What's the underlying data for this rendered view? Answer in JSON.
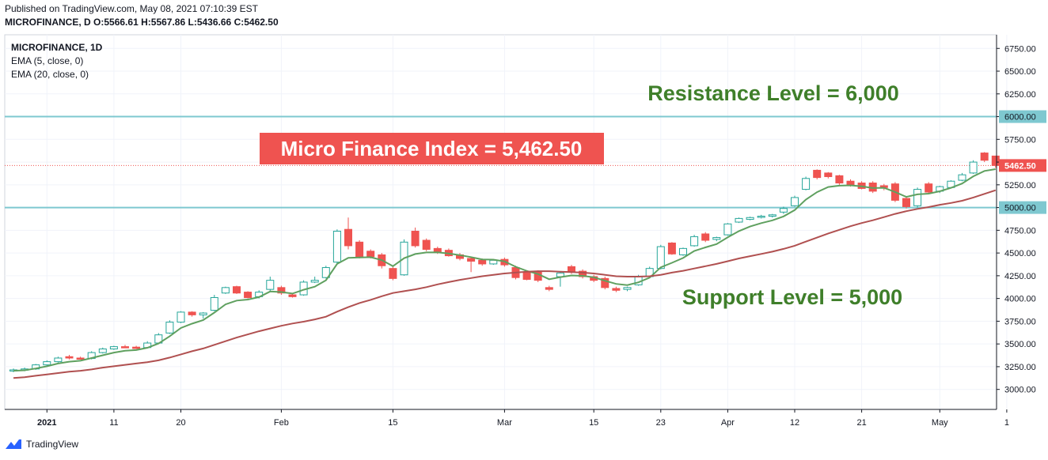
{
  "header": {
    "published": "Published on TradingView.com, May 08, 2021 07:10:39 EST",
    "symbol_line": "MICROFINANCE, D",
    "o_label": "O:",
    "o": "5566.61",
    "h_label": "H:",
    "h": "5567.86",
    "l_label": "L:",
    "l": "5436.66",
    "c_label": "C:",
    "c": "5462.50"
  },
  "legend": {
    "symbol": "MICROFINANCE, 1D",
    "ema5": "EMA (5, close, 0)",
    "ema20": "EMA (20, close, 0)"
  },
  "footer": {
    "brand": "TradingView"
  },
  "colors": {
    "up_border": "#26a69a",
    "down": "#ef5350",
    "ema5": "#5fa05f",
    "ema20": "#b05050",
    "level_line": "#7ec8d0",
    "resistance_text": "#3f7f2a",
    "callout_bg": "#ef5350"
  },
  "chart_data": {
    "type": "candlestick",
    "title": "",
    "ylim": [
      2780,
      6900
    ],
    "y_ticks": [
      "3000.00",
      "3250.00",
      "3500.00",
      "3750.00",
      "4000.00",
      "4250.00",
      "4500.00",
      "4750.00",
      "5000.00",
      "5250.00",
      "5500.00",
      "5750.00",
      "6000.00",
      "6250.00",
      "6500.00",
      "6750.00"
    ],
    "x_ticks": [
      {
        "index": 3,
        "label": "2021"
      },
      {
        "index": 9,
        "label": "11"
      },
      {
        "index": 15,
        "label": "20"
      },
      {
        "index": 24,
        "label": "Feb"
      },
      {
        "index": 34,
        "label": "15"
      },
      {
        "index": 44,
        "label": "Mar"
      },
      {
        "index": 52,
        "label": "15"
      },
      {
        "index": 58,
        "label": "23"
      },
      {
        "index": 64,
        "label": "Apr"
      },
      {
        "index": 70,
        "label": "12"
      },
      {
        "index": 76,
        "label": "21"
      },
      {
        "index": 83,
        "label": "May"
      },
      {
        "index": 89,
        "label": "1"
      }
    ],
    "candles": [
      {
        "o": 3210,
        "h": 3230,
        "l": 3190,
        "c": 3215
      },
      {
        "o": 3215,
        "h": 3240,
        "l": 3200,
        "c": 3225
      },
      {
        "o": 3225,
        "h": 3280,
        "l": 3215,
        "c": 3270
      },
      {
        "o": 3270,
        "h": 3320,
        "l": 3260,
        "c": 3305
      },
      {
        "o": 3305,
        "h": 3360,
        "l": 3295,
        "c": 3345
      },
      {
        "o": 3360,
        "h": 3380,
        "l": 3330,
        "c": 3345
      },
      {
        "o": 3345,
        "h": 3360,
        "l": 3330,
        "c": 3340
      },
      {
        "o": 3340,
        "h": 3420,
        "l": 3330,
        "c": 3405
      },
      {
        "o": 3405,
        "h": 3460,
        "l": 3395,
        "c": 3445
      },
      {
        "o": 3445,
        "h": 3480,
        "l": 3435,
        "c": 3470
      },
      {
        "o": 3470,
        "h": 3490,
        "l": 3455,
        "c": 3465
      },
      {
        "o": 3465,
        "h": 3480,
        "l": 3445,
        "c": 3450
      },
      {
        "o": 3460,
        "h": 3530,
        "l": 3455,
        "c": 3510
      },
      {
        "o": 3510,
        "h": 3620,
        "l": 3500,
        "c": 3600
      },
      {
        "o": 3620,
        "h": 3760,
        "l": 3610,
        "c": 3740
      },
      {
        "o": 3740,
        "h": 3860,
        "l": 3730,
        "c": 3850
      },
      {
        "o": 3850,
        "h": 3860,
        "l": 3800,
        "c": 3820
      },
      {
        "o": 3820,
        "h": 3850,
        "l": 3780,
        "c": 3840
      },
      {
        "o": 3870,
        "h": 4040,
        "l": 3860,
        "c": 4010
      },
      {
        "o": 4060,
        "h": 4130,
        "l": 4050,
        "c": 4120
      },
      {
        "o": 4130,
        "h": 4140,
        "l": 4050,
        "c": 4060
      },
      {
        "o": 4070,
        "h": 4080,
        "l": 4000,
        "c": 4010
      },
      {
        "o": 4020,
        "h": 4090,
        "l": 4000,
        "c": 4070
      },
      {
        "o": 4100,
        "h": 4240,
        "l": 4080,
        "c": 4200
      },
      {
        "o": 4120,
        "h": 4140,
        "l": 4040,
        "c": 4060
      },
      {
        "o": 4040,
        "h": 4060,
        "l": 4010,
        "c": 4020
      },
      {
        "o": 4040,
        "h": 4200,
        "l": 4030,
        "c": 4180
      },
      {
        "o": 4180,
        "h": 4240,
        "l": 4170,
        "c": 4200
      },
      {
        "o": 4230,
        "h": 4360,
        "l": 4220,
        "c": 4340
      },
      {
        "o": 4400,
        "h": 4760,
        "l": 4380,
        "c": 4740
      },
      {
        "o": 4760,
        "h": 4890,
        "l": 4540,
        "c": 4580
      },
      {
        "o": 4620,
        "h": 4640,
        "l": 4440,
        "c": 4460
      },
      {
        "o": 4520,
        "h": 4540,
        "l": 4440,
        "c": 4460
      },
      {
        "o": 4480,
        "h": 4500,
        "l": 4330,
        "c": 4360
      },
      {
        "o": 4330,
        "h": 4350,
        "l": 4200,
        "c": 4220
      },
      {
        "o": 4260,
        "h": 4650,
        "l": 4250,
        "c": 4620
      },
      {
        "o": 4740,
        "h": 4780,
        "l": 4560,
        "c": 4580
      },
      {
        "o": 4640,
        "h": 4660,
        "l": 4520,
        "c": 4540
      },
      {
        "o": 4550,
        "h": 4570,
        "l": 4490,
        "c": 4510
      },
      {
        "o": 4530,
        "h": 4550,
        "l": 4460,
        "c": 4470
      },
      {
        "o": 4480,
        "h": 4500,
        "l": 4420,
        "c": 4440
      },
      {
        "o": 4440,
        "h": 4460,
        "l": 4290,
        "c": 4410
      },
      {
        "o": 4420,
        "h": 4440,
        "l": 4360,
        "c": 4380
      },
      {
        "o": 4380,
        "h": 4430,
        "l": 4370,
        "c": 4420
      },
      {
        "o": 4430,
        "h": 4450,
        "l": 4350,
        "c": 4370
      },
      {
        "o": 4340,
        "h": 4360,
        "l": 4210,
        "c": 4230
      },
      {
        "o": 4290,
        "h": 4310,
        "l": 4200,
        "c": 4210
      },
      {
        "o": 4290,
        "h": 4310,
        "l": 4180,
        "c": 4200
      },
      {
        "o": 4120,
        "h": 4140,
        "l": 4080,
        "c": 4100
      },
      {
        "o": 4240,
        "h": 4300,
        "l": 4130,
        "c": 4280
      },
      {
        "o": 4350,
        "h": 4370,
        "l": 4270,
        "c": 4290
      },
      {
        "o": 4300,
        "h": 4320,
        "l": 4220,
        "c": 4240
      },
      {
        "o": 4240,
        "h": 4260,
        "l": 4180,
        "c": 4200
      },
      {
        "o": 4220,
        "h": 4240,
        "l": 4100,
        "c": 4120
      },
      {
        "o": 4110,
        "h": 4130,
        "l": 4070,
        "c": 4090
      },
      {
        "o": 4100,
        "h": 4130,
        "l": 4080,
        "c": 4120
      },
      {
        "o": 4150,
        "h": 4260,
        "l": 4140,
        "c": 4240
      },
      {
        "o": 4240,
        "h": 4350,
        "l": 4230,
        "c": 4330
      },
      {
        "o": 4330,
        "h": 4590,
        "l": 4320,
        "c": 4570
      },
      {
        "o": 4610,
        "h": 4620,
        "l": 4480,
        "c": 4490
      },
      {
        "o": 4480,
        "h": 4560,
        "l": 4470,
        "c": 4550
      },
      {
        "o": 4580,
        "h": 4700,
        "l": 4570,
        "c": 4680
      },
      {
        "o": 4710,
        "h": 4730,
        "l": 4620,
        "c": 4640
      },
      {
        "o": 4650,
        "h": 4680,
        "l": 4630,
        "c": 4670
      },
      {
        "o": 4700,
        "h": 4830,
        "l": 4690,
        "c": 4820
      },
      {
        "o": 4840,
        "h": 4890,
        "l": 4830,
        "c": 4880
      },
      {
        "o": 4870,
        "h": 4900,
        "l": 4860,
        "c": 4890
      },
      {
        "o": 4900,
        "h": 4920,
        "l": 4880,
        "c": 4905
      },
      {
        "o": 4905,
        "h": 4930,
        "l": 4890,
        "c": 4920
      },
      {
        "o": 4950,
        "h": 5010,
        "l": 4930,
        "c": 4990
      },
      {
        "o": 5020,
        "h": 5130,
        "l": 5010,
        "c": 5110
      },
      {
        "o": 5200,
        "h": 5340,
        "l": 5190,
        "c": 5320
      },
      {
        "o": 5410,
        "h": 5420,
        "l": 5310,
        "c": 5330
      },
      {
        "o": 5380,
        "h": 5390,
        "l": 5320,
        "c": 5340
      },
      {
        "o": 5350,
        "h": 5360,
        "l": 5250,
        "c": 5270
      },
      {
        "o": 5290,
        "h": 5310,
        "l": 5230,
        "c": 5250
      },
      {
        "o": 5270,
        "h": 5290,
        "l": 5200,
        "c": 5210
      },
      {
        "o": 5270,
        "h": 5290,
        "l": 5160,
        "c": 5180
      },
      {
        "o": 5240,
        "h": 5260,
        "l": 5190,
        "c": 5220
      },
      {
        "o": 5260,
        "h": 5280,
        "l": 5060,
        "c": 5080
      },
      {
        "o": 5100,
        "h": 5120,
        "l": 4990,
        "c": 5010
      },
      {
        "o": 5020,
        "h": 5220,
        "l": 5000,
        "c": 5200
      },
      {
        "o": 5260,
        "h": 5280,
        "l": 5150,
        "c": 5170
      },
      {
        "o": 5180,
        "h": 5240,
        "l": 5160,
        "c": 5230
      },
      {
        "o": 5220,
        "h": 5300,
        "l": 5210,
        "c": 5290
      },
      {
        "o": 5300,
        "h": 5380,
        "l": 5290,
        "c": 5360
      },
      {
        "o": 5380,
        "h": 5520,
        "l": 5370,
        "c": 5500
      },
      {
        "o": 5600,
        "h": 5610,
        "l": 5500,
        "c": 5520
      },
      {
        "o": 5566.61,
        "h": 5567.86,
        "l": 5436.66,
        "c": 5462.5
      }
    ],
    "series": [
      {
        "name": "EMA (5, close, 0)",
        "values": [
          3205,
          3210,
          3230,
          3255,
          3285,
          3305,
          3315,
          3345,
          3375,
          3405,
          3425,
          3433,
          3458,
          3505,
          3585,
          3675,
          3723,
          3762,
          3845,
          3935,
          3977,
          3988,
          4015,
          4077,
          4071,
          4054,
          4096,
          4130,
          4200,
          4380,
          4447,
          4451,
          4454,
          4423,
          4355,
          4443,
          4489,
          4506,
          4507,
          4495,
          4477,
          4455,
          4430,
          4427,
          4408,
          4349,
          4303,
          4269,
          4212,
          4235,
          4253,
          4249,
          4233,
          4195,
          4160,
          4147,
          4178,
          4229,
          4343,
          4392,
          4445,
          4523,
          4562,
          4598,
          4672,
          4741,
          4791,
          4829,
          4859,
          4903,
          4972,
          5088,
          5169,
          5226,
          5241,
          5244,
          5233,
          5215,
          5217,
          5171,
          5117,
          5145,
          5153,
          5179,
          5216,
          5264,
          5343,
          5402,
          5422
        ]
      },
      {
        "name": "EMA (20, close, 0)",
        "values": [
          3125,
          3135,
          3150,
          3165,
          3180,
          3195,
          3205,
          3220,
          3240,
          3255,
          3270,
          3285,
          3300,
          3320,
          3350,
          3385,
          3420,
          3450,
          3490,
          3530,
          3570,
          3605,
          3640,
          3670,
          3700,
          3725,
          3745,
          3770,
          3800,
          3855,
          3905,
          3950,
          3985,
          4025,
          4060,
          4080,
          4100,
          4125,
          4155,
          4180,
          4205,
          4225,
          4245,
          4260,
          4275,
          4285,
          4295,
          4300,
          4300,
          4295,
          4290,
          4285,
          4275,
          4260,
          4245,
          4240,
          4240,
          4245,
          4260,
          4285,
          4305,
          4330,
          4355,
          4380,
          4410,
          4440,
          4465,
          4490,
          4515,
          4545,
          4580,
          4625,
          4670,
          4715,
          4755,
          4795,
          4830,
          4860,
          4895,
          4930,
          4960,
          4985,
          5005,
          5030,
          5050,
          5075,
          5110,
          5150,
          5190
        ]
      }
    ],
    "hlines": [
      {
        "value": 6000,
        "label": "6000.00"
      },
      {
        "value": 5000,
        "label": "5000.00"
      }
    ],
    "last_price": {
      "value": 5462.5,
      "label": "5462.50"
    },
    "annotations": {
      "resistance": "Resistance Level = 6,000",
      "support": "Support Level = 5,000",
      "index": "Micro Finance Index = 5,462.50"
    }
  }
}
